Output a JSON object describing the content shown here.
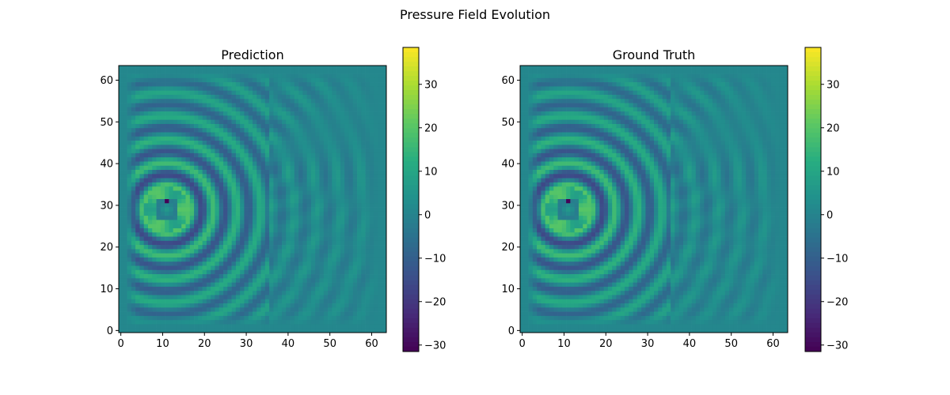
{
  "figure": {
    "title": "Pressure Field Evolution"
  },
  "chart_data": [
    {
      "type": "heatmap",
      "title": "Prediction",
      "xlabel": "",
      "ylabel": "",
      "grid": false,
      "x_ticks": [
        0,
        10,
        20,
        30,
        40,
        50,
        60
      ],
      "y_ticks": [
        0,
        10,
        20,
        30,
        40,
        50,
        60
      ],
      "xlim": [
        -0.5,
        63.5
      ],
      "ylim": [
        63.5,
        -0.5
      ],
      "resolution": [
        64,
        64
      ],
      "colormap": "viridis",
      "colorbar": {
        "ticks": [
          -30,
          -20,
          -10,
          0,
          10,
          20,
          30
        ],
        "range": [
          -31.5,
          38.5
        ]
      },
      "field": {
        "source": [
          11,
          34
        ],
        "source_radius": 5.2,
        "source_ring_value": 20,
        "source_core_value": -31,
        "wavelength": 5.6,
        "amplitude_near": 17,
        "amplitude_far": 6,
        "phase_step": [
          35,
          3.6
        ],
        "secondary_source": [
          35.5,
          22
        ],
        "far_field_value": 1
      }
    },
    {
      "type": "heatmap",
      "title": "Ground Truth",
      "xlabel": "",
      "ylabel": "",
      "grid": false,
      "x_ticks": [
        0,
        10,
        20,
        30,
        40,
        50,
        60
      ],
      "y_ticks": [
        0,
        10,
        20,
        30,
        40,
        50,
        60
      ],
      "xlim": [
        -0.5,
        63.5
      ],
      "ylim": [
        63.5,
        -0.5
      ],
      "resolution": [
        64,
        64
      ],
      "colormap": "viridis",
      "colorbar": {
        "ticks": [
          -30,
          -20,
          -10,
          0,
          10,
          20,
          30
        ],
        "range": [
          -31.5,
          38.5
        ]
      },
      "field": {
        "source": [
          11,
          34
        ],
        "source_radius": 5.2,
        "source_ring_value": 20,
        "source_core_value": -31,
        "wavelength": 5.6,
        "amplitude_near": 17,
        "amplitude_far": 6,
        "phase_step": [
          35,
          3.6
        ],
        "secondary_source": [
          35.5,
          22
        ],
        "far_field_value": 1
      }
    }
  ]
}
